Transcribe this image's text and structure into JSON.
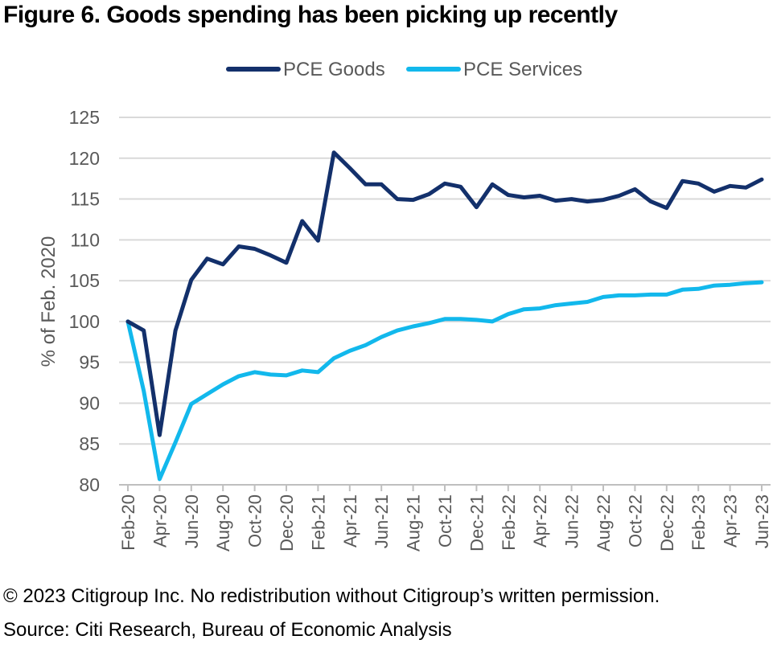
{
  "title": "Figure 6. Goods spending has been picking up recently",
  "footer": {
    "copyright": "© 2023 Citigroup Inc. No redistribution without Citigroup’s written permission.",
    "source": "Source: Citi Research, Bureau of Economic Analysis"
  },
  "chart_data": {
    "type": "line",
    "ylabel": "% of Feb. 2020",
    "xlabel": "",
    "ylim": [
      80,
      125
    ],
    "yticks": [
      80,
      85,
      90,
      95,
      100,
      105,
      110,
      115,
      120,
      125
    ],
    "grid": "horizontal",
    "legend_position": "top-center",
    "x": [
      "Feb-20",
      "Mar-20",
      "Apr-20",
      "May-20",
      "Jun-20",
      "Jul-20",
      "Aug-20",
      "Sep-20",
      "Oct-20",
      "Nov-20",
      "Dec-20",
      "Jan-21",
      "Feb-21",
      "Mar-21",
      "Apr-21",
      "May-21",
      "Jun-21",
      "Jul-21",
      "Aug-21",
      "Sep-21",
      "Oct-21",
      "Nov-21",
      "Dec-21",
      "Jan-22",
      "Feb-22",
      "Mar-22",
      "Apr-22",
      "May-22",
      "Jun-22",
      "Jul-22",
      "Aug-22",
      "Sep-22",
      "Oct-22",
      "Nov-22",
      "Dec-22",
      "Jan-23",
      "Feb-23",
      "Mar-23",
      "Apr-23",
      "May-23",
      "Jun-23"
    ],
    "xtick_labels": [
      "Feb-20",
      "Apr-20",
      "Jun-20",
      "Aug-20",
      "Oct-20",
      "Dec-20",
      "Feb-21",
      "Apr-21",
      "Jun-21",
      "Aug-21",
      "Oct-21",
      "Dec-21",
      "Feb-22",
      "Apr-22",
      "Jun-22",
      "Aug-22",
      "Oct-22",
      "Dec-22",
      "Feb-23",
      "Apr-23",
      "Jun-23"
    ],
    "series": [
      {
        "name": "PCE Goods",
        "color": "#13306b",
        "values": [
          100.0,
          98.9,
          86.1,
          98.9,
          105.1,
          107.7,
          107.0,
          109.2,
          108.9,
          108.1,
          107.2,
          112.3,
          109.9,
          120.7,
          118.8,
          116.8,
          116.8,
          115.0,
          114.9,
          115.6,
          116.9,
          116.5,
          114.0,
          116.8,
          115.5,
          115.2,
          115.4,
          114.8,
          115.0,
          114.7,
          114.9,
          115.4,
          116.2,
          114.7,
          113.9,
          117.2,
          116.9,
          115.9,
          116.6,
          116.4,
          117.4
        ]
      },
      {
        "name": "PCE Services",
        "color": "#12b8ec",
        "values": [
          100.0,
          91.5,
          80.7,
          85.2,
          89.9,
          91.1,
          92.3,
          93.3,
          93.8,
          93.5,
          93.4,
          94.0,
          93.8,
          95.5,
          96.4,
          97.1,
          98.1,
          98.9,
          99.4,
          99.8,
          100.3,
          100.3,
          100.2,
          100.0,
          100.9,
          101.5,
          101.6,
          102.0,
          102.2,
          102.4,
          103.0,
          103.2,
          103.2,
          103.3,
          103.3,
          103.9,
          104.0,
          104.4,
          104.5,
          104.7,
          104.8
        ]
      }
    ]
  }
}
